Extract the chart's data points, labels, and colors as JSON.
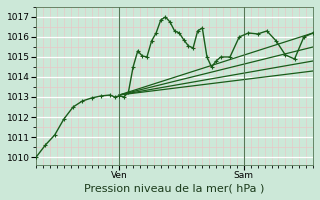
{
  "xlabel": "Pression niveau de la mer( hPa )",
  "bg_color": "#cce8d8",
  "plot_bg_color": "#cce8d8",
  "grid_major_color": "#ffffff",
  "grid_minor_color": "#e8c8c8",
  "line_color": "#1a5c1a",
  "marker_color": "#1a5c1a",
  "vline_color": "#557755",
  "yticks": [
    1010,
    1011,
    1012,
    1013,
    1014,
    1015,
    1016,
    1017
  ],
  "ylim": [
    1009.6,
    1017.5
  ],
  "xlim_days": [
    0,
    2.5
  ],
  "ven_x": 0.75,
  "sam_x": 1.875,
  "series_main": {
    "x": [
      0.0,
      0.083,
      0.167,
      0.25,
      0.333,
      0.417,
      0.5,
      0.583,
      0.667,
      0.708,
      0.75,
      0.792,
      0.833,
      0.875,
      0.917,
      0.958,
      1.0,
      1.042,
      1.083,
      1.125,
      1.167,
      1.208,
      1.25,
      1.292,
      1.333,
      1.375,
      1.417,
      1.458,
      1.5,
      1.542,
      1.583,
      1.625,
      1.667,
      1.75,
      1.833,
      1.917,
      2.0,
      2.083,
      2.167,
      2.25,
      2.333,
      2.417,
      2.5
    ],
    "y": [
      1010.0,
      1010.6,
      1011.1,
      1011.9,
      1012.5,
      1012.8,
      1012.95,
      1013.05,
      1013.1,
      1013.0,
      1013.05,
      1013.0,
      1013.25,
      1014.5,
      1015.3,
      1015.05,
      1015.0,
      1015.8,
      1016.2,
      1016.85,
      1017.0,
      1016.75,
      1016.3,
      1016.2,
      1015.85,
      1015.55,
      1015.45,
      1016.3,
      1016.45,
      1015.0,
      1014.5,
      1014.8,
      1015.0,
      1015.0,
      1016.0,
      1016.2,
      1016.15,
      1016.3,
      1015.8,
      1015.1,
      1014.9,
      1016.0,
      1016.2
    ]
  },
  "fan_lines": [
    {
      "x0": 0.75,
      "y0": 1013.1,
      "x1": 2.5,
      "y1": 1016.2
    },
    {
      "x0": 0.75,
      "y0": 1013.1,
      "x1": 2.5,
      "y1": 1015.5
    },
    {
      "x0": 0.75,
      "y0": 1013.1,
      "x1": 2.5,
      "y1": 1014.8
    },
    {
      "x0": 0.75,
      "y0": 1013.1,
      "x1": 2.5,
      "y1": 1014.3
    }
  ],
  "xlabel_fontsize": 8,
  "tick_fontsize": 6.5
}
